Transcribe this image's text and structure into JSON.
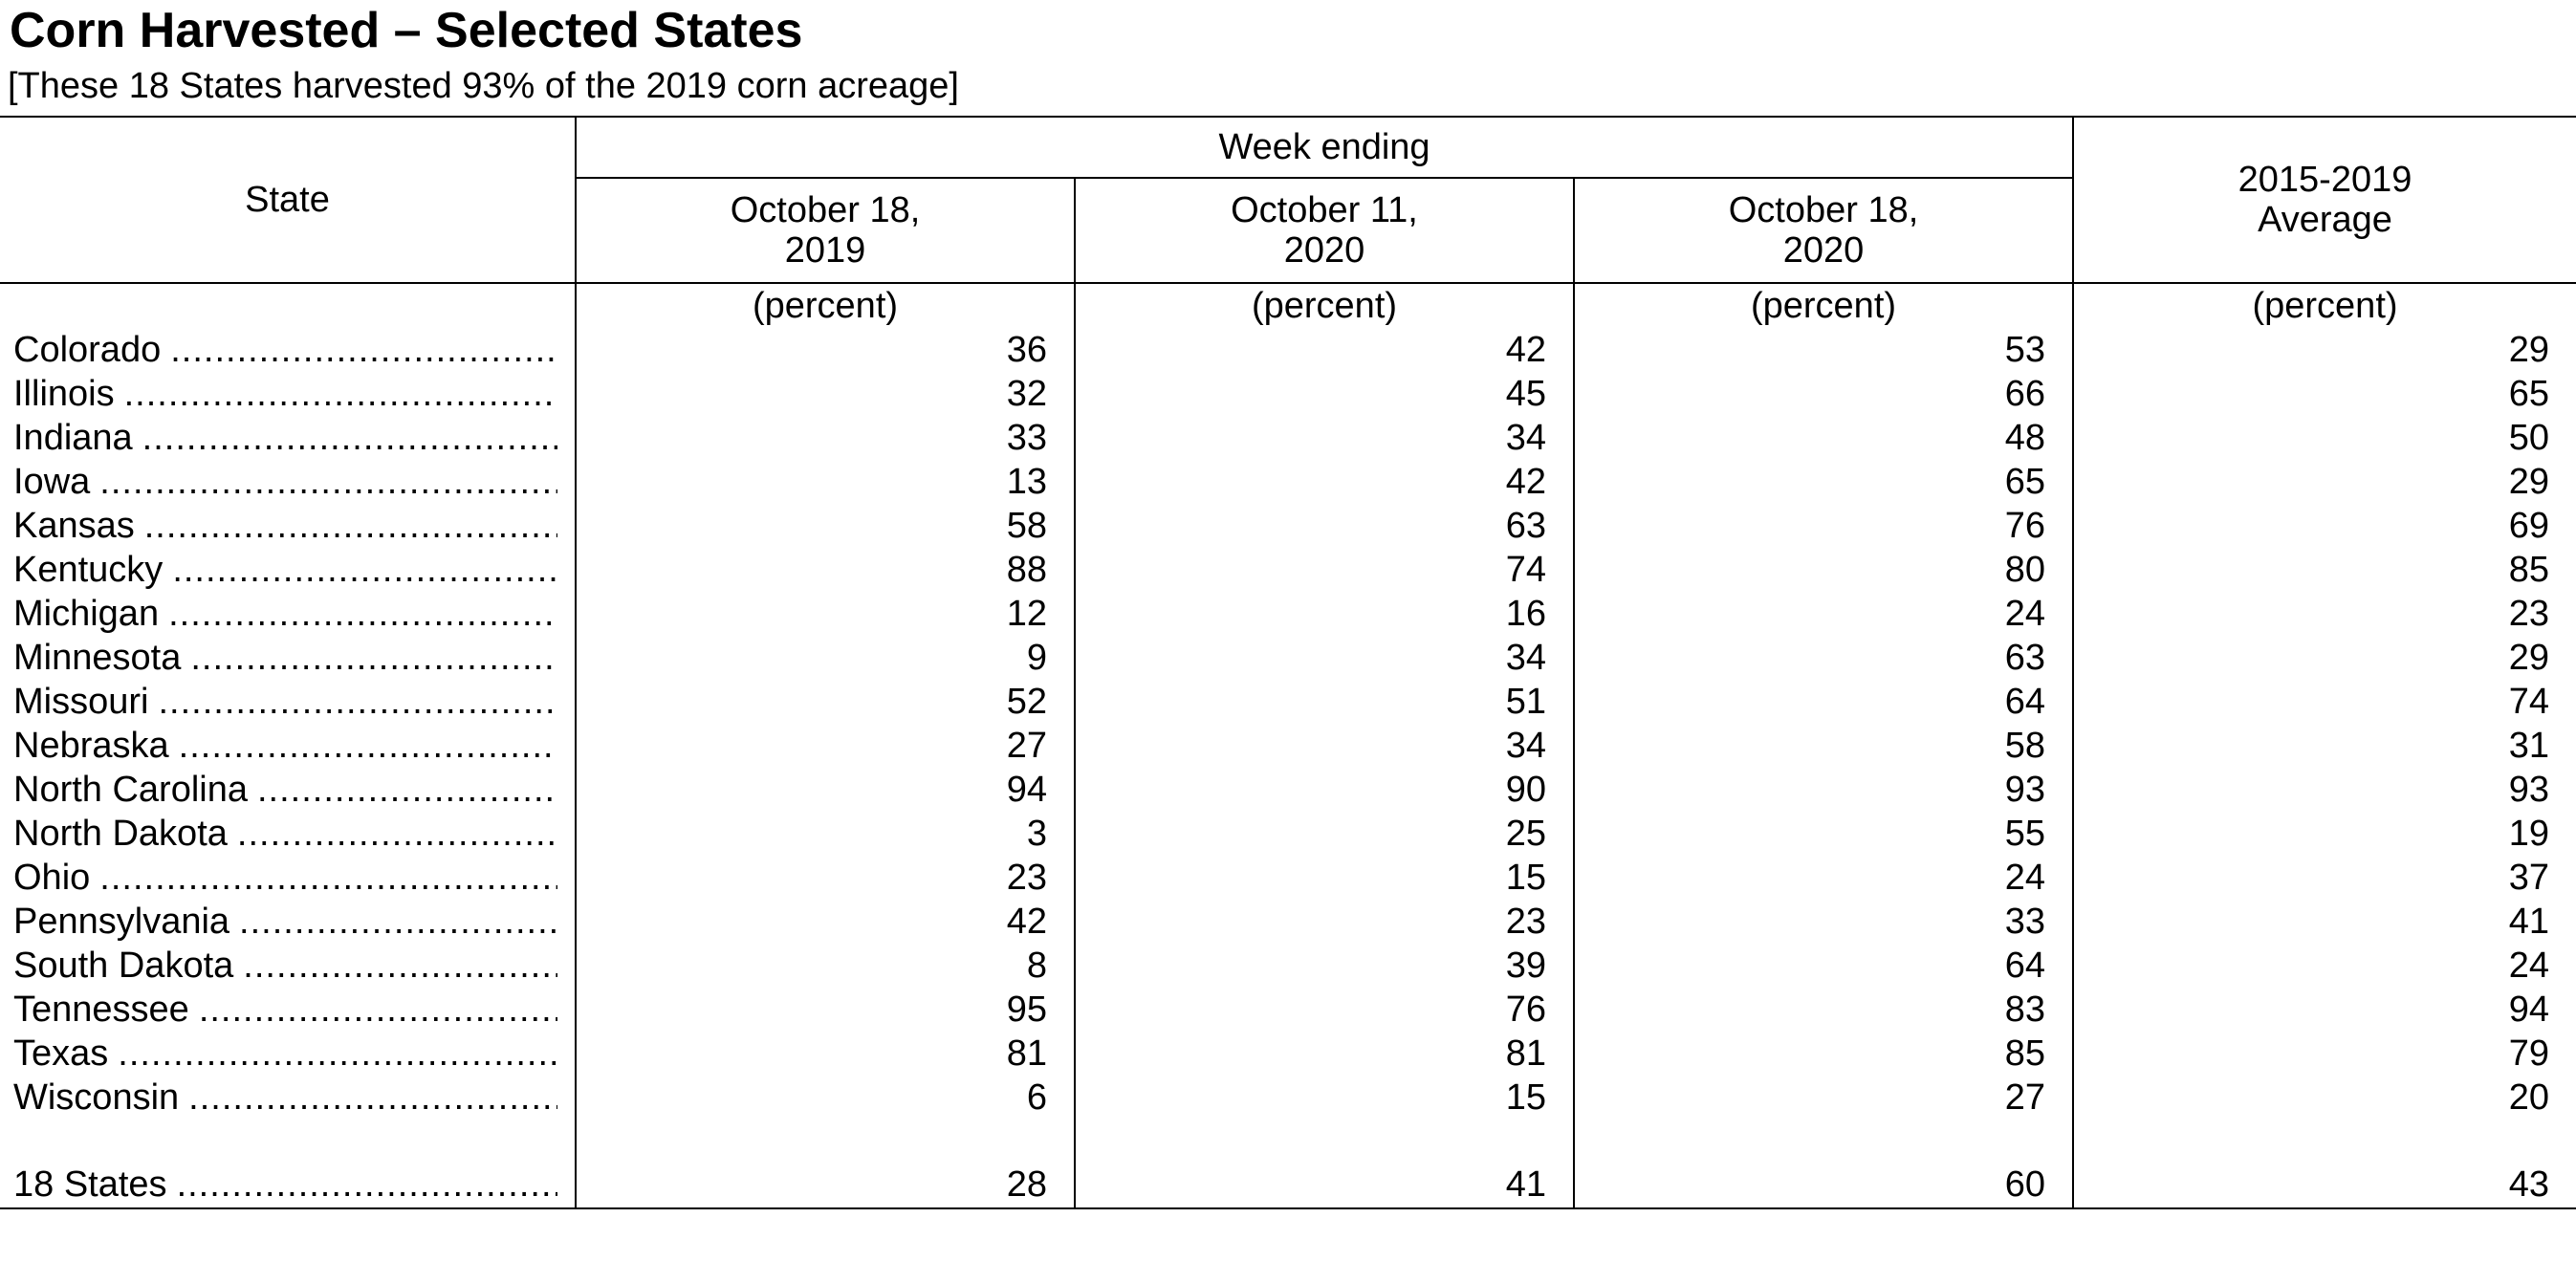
{
  "title": "Corn Harvested – Selected States",
  "subtitle": "[These 18 States harvested 93% of the 2019 corn acreage]",
  "table": {
    "state_header": "State",
    "week_ending_header": "Week ending",
    "date_headers": [
      {
        "line1": "October 18,",
        "line2": "2019"
      },
      {
        "line1": "October 11,",
        "line2": "2020"
      },
      {
        "line1": "October 18,",
        "line2": "2020"
      }
    ],
    "average_header": {
      "line1": "2015-2019",
      "line2": "Average"
    },
    "units": [
      "(percent)",
      "(percent)",
      "(percent)",
      "(percent)"
    ],
    "rows": [
      {
        "state": "Colorado",
        "values": [
          "36",
          "42",
          "53",
          "29"
        ]
      },
      {
        "state": "Illinois",
        "values": [
          "32",
          "45",
          "66",
          "65"
        ]
      },
      {
        "state": "Indiana",
        "values": [
          "33",
          "34",
          "48",
          "50"
        ]
      },
      {
        "state": "Iowa",
        "values": [
          "13",
          "42",
          "65",
          "29"
        ]
      },
      {
        "state": "Kansas",
        "values": [
          "58",
          "63",
          "76",
          "69"
        ]
      },
      {
        "state": "Kentucky",
        "values": [
          "88",
          "74",
          "80",
          "85"
        ]
      },
      {
        "state": "Michigan",
        "values": [
          "12",
          "16",
          "24",
          "23"
        ]
      },
      {
        "state": "Minnesota",
        "values": [
          "9",
          "34",
          "63",
          "29"
        ]
      },
      {
        "state": "Missouri",
        "values": [
          "52",
          "51",
          "64",
          "74"
        ]
      },
      {
        "state": "Nebraska",
        "values": [
          "27",
          "34",
          "58",
          "31"
        ]
      },
      {
        "state": "North Carolina",
        "values": [
          "94",
          "90",
          "93",
          "93"
        ]
      },
      {
        "state": "North Dakota",
        "values": [
          "3",
          "25",
          "55",
          "19"
        ]
      },
      {
        "state": "Ohio",
        "values": [
          "23",
          "15",
          "24",
          "37"
        ]
      },
      {
        "state": "Pennsylvania",
        "values": [
          "42",
          "23",
          "33",
          "41"
        ]
      },
      {
        "state": "South Dakota",
        "values": [
          "8",
          "39",
          "64",
          "24"
        ]
      },
      {
        "state": "Tennessee",
        "values": [
          "95",
          "76",
          "83",
          "94"
        ]
      },
      {
        "state": "Texas",
        "values": [
          "81",
          "81",
          "85",
          "79"
        ]
      },
      {
        "state": "Wisconsin",
        "values": [
          "6",
          "15",
          "27",
          "20"
        ]
      }
    ],
    "total": {
      "state": "18 States",
      "values": [
        "28",
        "41",
        "60",
        "43"
      ]
    }
  }
}
